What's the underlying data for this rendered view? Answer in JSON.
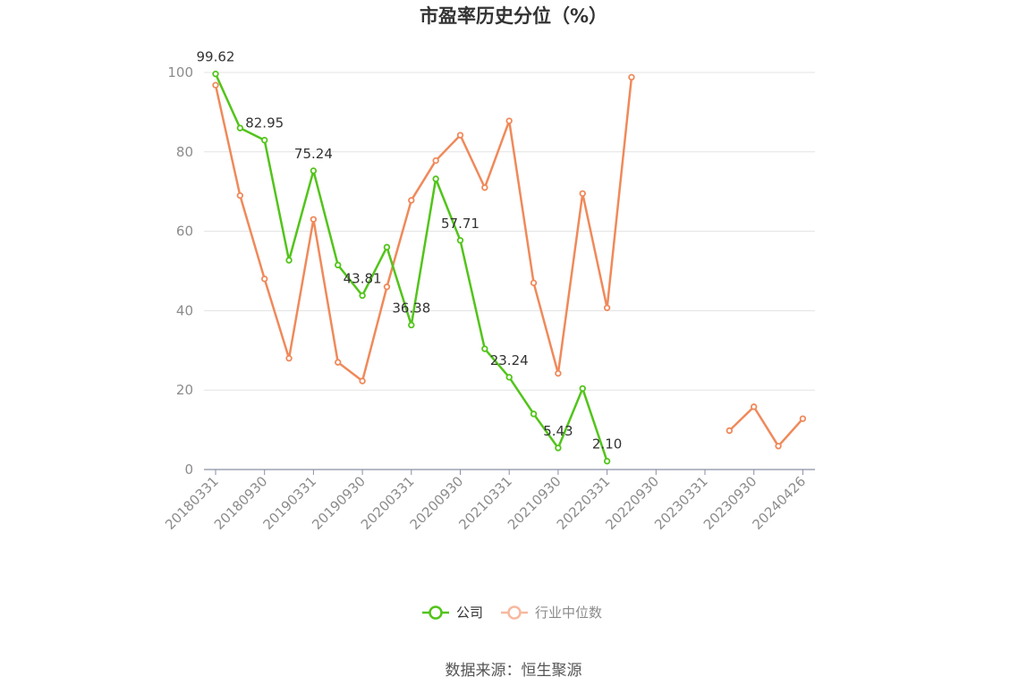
{
  "chart_data": {
    "type": "line",
    "title": "市盈率历史分位（%）",
    "source": "数据来源：恒生聚源",
    "ylim": [
      0,
      100
    ],
    "yticks": [
      0,
      20,
      40,
      60,
      80,
      100
    ],
    "grid": true,
    "legend_position": "bottom",
    "x": [
      "20180331",
      "20180630",
      "20180930",
      "20181231",
      "20190331",
      "20190630",
      "20190930",
      "20191231",
      "20200331",
      "20200630",
      "20200930",
      "20201231",
      "20210331",
      "20210630",
      "20210930",
      "20211231",
      "20220331",
      "20220630",
      "20220930",
      "20221231",
      "20230331",
      "20230630",
      "20230930",
      "20231231",
      "20240426"
    ],
    "xtick_labels": [
      "20180331",
      "20180930",
      "20190331",
      "20190930",
      "20200331",
      "20200930",
      "20210331",
      "20210930",
      "20220331",
      "20220930",
      "20230331",
      "20230930",
      "20240426"
    ],
    "series": [
      {
        "name": "公司",
        "color": "#52c41a",
        "values": [
          99.62,
          86.0,
          82.95,
          52.7,
          75.24,
          51.5,
          43.81,
          56.0,
          36.38,
          73.2,
          57.71,
          30.4,
          23.24,
          14.0,
          5.43,
          20.4,
          2.1,
          null,
          null,
          null,
          null,
          null,
          null,
          null,
          null
        ],
        "labels": {
          "0": "99.62",
          "2": "82.95",
          "4": "75.24",
          "6": "43.81",
          "8": "36.38",
          "10": "57.71",
          "12": "23.24",
          "14": "5.43",
          "16": "2.10"
        }
      },
      {
        "name": "行业中位数",
        "color": "#f0895a",
        "values": [
          96.8,
          69.0,
          48.0,
          28.0,
          63.0,
          27.0,
          22.3,
          46.0,
          67.8,
          77.8,
          84.2,
          71.0,
          87.8,
          47.0,
          24.2,
          69.5,
          40.7,
          98.8,
          null,
          null,
          null,
          9.8,
          15.8,
          5.9,
          12.8
        ]
      }
    ]
  }
}
